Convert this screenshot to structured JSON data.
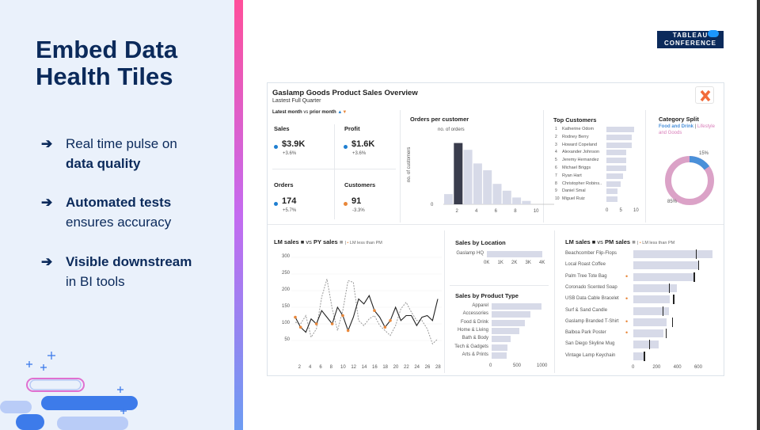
{
  "slide": {
    "title_line1": "Embed Data",
    "title_line2": "Health Tiles",
    "bullets": [
      {
        "arrow": "➔",
        "normal_before": "Real time pulse on",
        "bold": "data quality",
        "normal_after": ""
      },
      {
        "arrow": "➔",
        "normal_before": "",
        "bold": "Automated tests",
        "normal_after": "ensures accuracy"
      },
      {
        "arrow": "➔",
        "normal_before": "",
        "bold": "Visible downstream",
        "normal_after": "in BI tools"
      }
    ],
    "logo_line1": "TABLEAU",
    "logo_line2": "CONFERENCE"
  },
  "dashboard": {
    "title": "Gaslamp Goods Product Sales Overview",
    "subtitle": "Lastest Full Quarter",
    "filter_label": "Latest month",
    "filter_vs": "vs",
    "filter_prior": "prior month",
    "colors": {
      "up": "#1f7fd1",
      "down": "#e8873a",
      "bar": "#d7dae8",
      "highlight": "#3a3d4d",
      "pink": "#dba2c7",
      "blue": "#4a90d9"
    },
    "kpis": [
      {
        "label": "Sales",
        "value": "$3.9K",
        "change": "+3.6%",
        "dot": "blue"
      },
      {
        "label": "Profit",
        "value": "$1.6K",
        "change": "+3.6%",
        "dot": "blue"
      },
      {
        "label": "Orders",
        "value": "174",
        "change": "+5.7%",
        "dot": "blue"
      },
      {
        "label": "Customers",
        "value": "91",
        "change": "-3.3%",
        "dot": "orange"
      }
    ],
    "orders_per_customer": {
      "title": "Orders per customer",
      "legend": "no. of orders",
      "ylabel": "no. of customers",
      "y0": "0",
      "xticks": [
        "2",
        "4",
        "6",
        "8",
        "10"
      ],
      "values": [
        3,
        18,
        16,
        12,
        10,
        6,
        4,
        2,
        1
      ],
      "highlight_index": 1
    },
    "top_customers": {
      "title": "Top Customers",
      "xticks": [
        "0",
        "5",
        "10"
      ],
      "rows": [
        {
          "rank": "1",
          "name": "Katherine Odom",
          "value": 10
        },
        {
          "rank": "2",
          "name": "Rodney Berry",
          "value": 9
        },
        {
          "rank": "3",
          "name": "Howard Copeland",
          "value": 9
        },
        {
          "rank": "4",
          "name": "Alexander Johnson",
          "value": 7
        },
        {
          "rank": "5",
          "name": "Jeremy Hernandez",
          "value": 7
        },
        {
          "rank": "6",
          "name": "Michael Briggs",
          "value": 7
        },
        {
          "rank": "7",
          "name": "Ryan Hart",
          "value": 6
        },
        {
          "rank": "8",
          "name": "Christopher Robins..",
          "value": 5
        },
        {
          "rank": "9",
          "name": "Daniel Smal",
          "value": 4
        },
        {
          "rank": "10",
          "name": "Miguel Ruiz",
          "value": 4
        }
      ]
    },
    "category_split": {
      "title": "Category Split",
      "legend_a": "Food and Drink",
      "legend_sep": "|",
      "legend_b": "Lifestyle and Goods",
      "pct_a": "15%",
      "pct_b": "85%",
      "value_a": 15,
      "value_b": 85
    },
    "lm_sales": {
      "title_a": "LM sales",
      "title_vs": "vs",
      "title_b": "PY sales",
      "title_c": "LM less than PM",
      "yticks": [
        "300",
        "250",
        "200",
        "150",
        "100",
        "50"
      ],
      "ytick_values": [
        300,
        250,
        200,
        150,
        100,
        50
      ],
      "xticks": [
        "2",
        "4",
        "6",
        "8",
        "10",
        "12",
        "14",
        "16",
        "18",
        "20",
        "22",
        "24",
        "26",
        "28"
      ],
      "xtick_values": [
        2,
        4,
        6,
        8,
        10,
        12,
        14,
        16,
        18,
        20,
        22,
        24,
        26,
        28
      ],
      "lm": [
        [
          1,
          120
        ],
        [
          2,
          90
        ],
        [
          3,
          75
        ],
        [
          4,
          115
        ],
        [
          5,
          100
        ],
        [
          6,
          140
        ],
        [
          7,
          120
        ],
        [
          8,
          100
        ],
        [
          9,
          150
        ],
        [
          10,
          125
        ],
        [
          11,
          80
        ],
        [
          12,
          120
        ],
        [
          13,
          175
        ],
        [
          14,
          160
        ],
        [
          15,
          185
        ],
        [
          16,
          140
        ],
        [
          17,
          120
        ],
        [
          18,
          90
        ],
        [
          19,
          110
        ],
        [
          20,
          150
        ],
        [
          21,
          110
        ],
        [
          22,
          125
        ],
        [
          23,
          125
        ],
        [
          24,
          95
        ],
        [
          25,
          120
        ],
        [
          26,
          125
        ],
        [
          27,
          110
        ],
        [
          28,
          175
        ]
      ],
      "py": [
        [
          1,
          105
        ],
        [
          2,
          100
        ],
        [
          3,
          125
        ],
        [
          4,
          60
        ],
        [
          5,
          85
        ],
        [
          6,
          180
        ],
        [
          7,
          235
        ],
        [
          8,
          145
        ],
        [
          9,
          80
        ],
        [
          10,
          140
        ],
        [
          11,
          230
        ],
        [
          12,
          225
        ],
        [
          13,
          110
        ],
        [
          14,
          95
        ],
        [
          15,
          115
        ],
        [
          16,
          125
        ],
        [
          17,
          95
        ],
        [
          18,
          80
        ],
        [
          19,
          65
        ],
        [
          20,
          95
        ],
        [
          21,
          145
        ],
        [
          22,
          165
        ],
        [
          23,
          135
        ],
        [
          24,
          110
        ],
        [
          25,
          110
        ],
        [
          26,
          85
        ],
        [
          27,
          40
        ],
        [
          28,
          55
        ]
      ],
      "flagged_x": [
        1,
        2,
        5,
        8,
        10,
        11,
        16,
        18,
        19
      ]
    },
    "sales_by_location": {
      "title": "Sales by Location",
      "rows": [
        {
          "name": "Gaslamp HQ",
          "value": 4000
        }
      ],
      "xticks": [
        "0K",
        "1K",
        "2K",
        "3K",
        "4K"
      ]
    },
    "sales_by_product_type": {
      "title": "Sales by Product Type",
      "xticks": [
        "0",
        "500",
        "1000"
      ],
      "rows": [
        {
          "name": "Apparel",
          "value": 1050
        },
        {
          "name": "Accessories",
          "value": 820
        },
        {
          "name": "Food & Drink",
          "value": 700
        },
        {
          "name": "Home & Living",
          "value": 580
        },
        {
          "name": "Bath & Body",
          "value": 400
        },
        {
          "name": "Tech & Gadgets",
          "value": 340
        },
        {
          "name": "Arts & Prints",
          "value": 320
        }
      ]
    },
    "lm_vs_pm": {
      "title_a": "LM sales",
      "title_vs": "vs",
      "title_b": "PM sales",
      "title_c": "LM less than PM",
      "xticks": [
        "0",
        "200",
        "400",
        "600"
      ],
      "rows": [
        {
          "name": "Beachcomber Flip-Flops",
          "lm": 760,
          "pm": 600,
          "flag": false
        },
        {
          "name": "Local Roast Coffee",
          "lm": 620,
          "pm": 620,
          "flag": false
        },
        {
          "name": "Palm Tree Tote Bag",
          "lm": 580,
          "pm": 580,
          "flag": true
        },
        {
          "name": "Coronado Scented Soap",
          "lm": 420,
          "pm": 340,
          "flag": false
        },
        {
          "name": "USB Data Cable Bracelet",
          "lm": 350,
          "pm": 380,
          "flag": true
        },
        {
          "name": "Surf & Sand Candle",
          "lm": 340,
          "pm": 280,
          "flag": false
        },
        {
          "name": "Gaslamp Branded T-Shirt",
          "lm": 320,
          "pm": 370,
          "flag": true
        },
        {
          "name": "Balboa Park Poster",
          "lm": 290,
          "pm": 310,
          "flag": true
        },
        {
          "name": "San Diego Skyline Mug",
          "lm": 240,
          "pm": 150,
          "flag": false
        },
        {
          "name": "Vintage Lamp Keychain",
          "lm": 100,
          "pm": 100,
          "flag": false
        }
      ]
    }
  }
}
